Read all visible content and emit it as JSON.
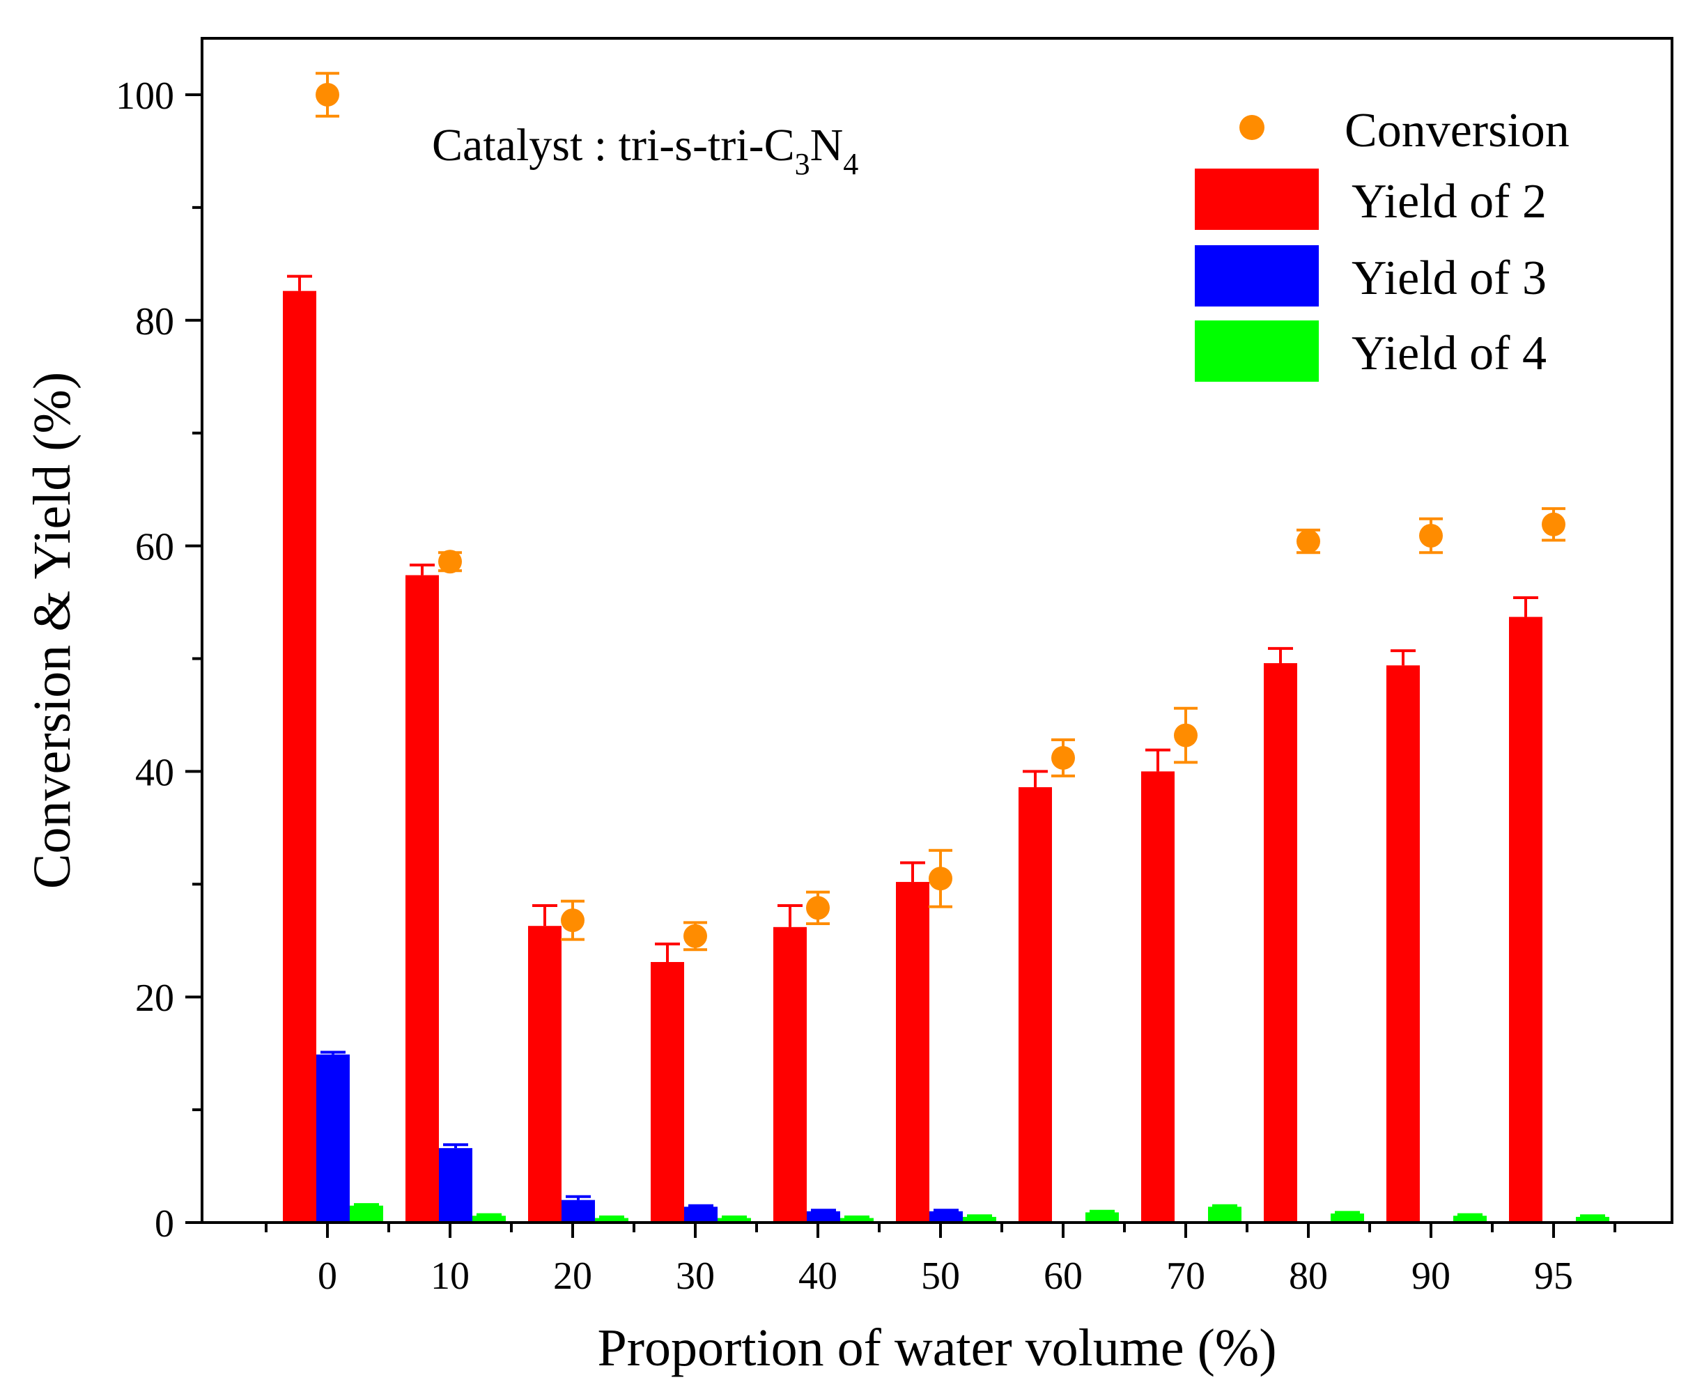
{
  "chart_data": {
    "type": "bar",
    "xlabel": "Proportion of water volume (%)",
    "ylabel": "Conversion & Yield (%)",
    "ylim": [
      0,
      105
    ],
    "yticks": [
      0,
      20,
      40,
      60,
      80,
      100
    ],
    "categories": [
      "0",
      "10",
      "20",
      "30",
      "40",
      "50",
      "60",
      "70",
      "80",
      "90",
      "95"
    ],
    "annotation": {
      "prefix": "Catalyst : tri-s-tri-C",
      "sub1": "3",
      "mid": "N",
      "sub2": "4"
    },
    "series": [
      {
        "name": "Yield of 2",
        "kind": "bar",
        "color": "#ff0000",
        "values": [
          82.6,
          57.4,
          26.3,
          23.1,
          26.2,
          30.2,
          38.6,
          40.0,
          49.6,
          49.4,
          53.7
        ],
        "errors": [
          1.3,
          0.9,
          1.8,
          1.6,
          1.9,
          1.7,
          1.4,
          1.9,
          1.3,
          1.3,
          1.7
        ]
      },
      {
        "name": "Yield of 3",
        "kind": "bar",
        "color": "#0000ff",
        "values": [
          14.9,
          6.6,
          2.0,
          1.4,
          1.0,
          1.0,
          0,
          0,
          0,
          0,
          0
        ],
        "errors": [
          0.2,
          0.3,
          0.3,
          0.1,
          0.1,
          0.1,
          0,
          0,
          0,
          0,
          0
        ]
      },
      {
        "name": "Yield of 4",
        "kind": "bar",
        "color": "#00ff00",
        "values": [
          1.5,
          0.6,
          0.4,
          0.4,
          0.4,
          0.5,
          0.9,
          1.4,
          0.8,
          0.6,
          0.5
        ],
        "errors": [
          0.1,
          0.1,
          0.1,
          0.1,
          0.1,
          0.1,
          0.1,
          0.1,
          0.1,
          0.1,
          0.1
        ]
      },
      {
        "name": "Conversion",
        "kind": "scatter",
        "color": "#ff8c00",
        "values": [
          100.0,
          58.6,
          26.8,
          25.4,
          27.9,
          30.5,
          41.2,
          43.2,
          60.4,
          60.9,
          61.9
        ],
        "errors": [
          1.9,
          0.8,
          1.7,
          1.2,
          1.4,
          2.5,
          1.6,
          2.4,
          1.0,
          1.5,
          1.4
        ]
      }
    ],
    "legend_position": "top-right"
  }
}
